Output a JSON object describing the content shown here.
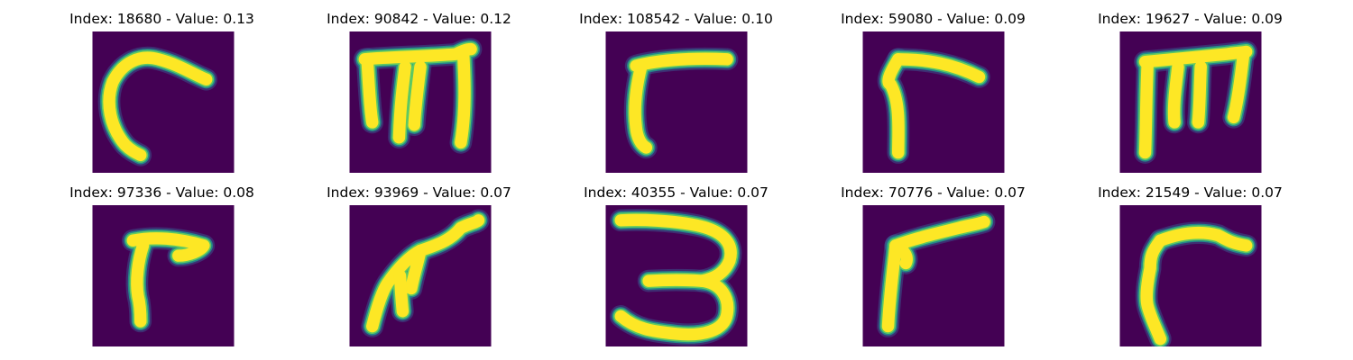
{
  "figure": {
    "background": "#ffffff",
    "image_background": "#440154",
    "stroke_color": "#fde725",
    "edge_colors": [
      "#21918c",
      "#5ec962",
      "#3b528b"
    ],
    "colormap": "viridis",
    "axes_visible": false
  },
  "panels": [
    {
      "title": "Index: 18680 - Value: 0.13",
      "index": "18680",
      "value": "0.13",
      "glyph": "hook"
    },
    {
      "title": "Index: 90842 - Value: 0.12",
      "index": "90842",
      "value": "0.12",
      "glyph": "m-shape"
    },
    {
      "title": "Index: 108542 - Value: 0.10",
      "index": "108542",
      "value": "0.10",
      "glyph": "seven-like"
    },
    {
      "title": "Index: 59080 - Value: 0.09",
      "index": "59080",
      "value": "0.09",
      "glyph": "seven-like"
    },
    {
      "title": "Index: 19627 - Value: 0.09",
      "index": "19627",
      "value": "0.09",
      "glyph": "m-shape"
    },
    {
      "title": "Index: 97336 - Value: 0.08",
      "index": "97336",
      "value": "0.08",
      "glyph": "seven-like"
    },
    {
      "title": "Index: 93969 - Value: 0.07",
      "index": "93969",
      "value": "0.07",
      "glyph": "wavy-stroke"
    },
    {
      "title": "Index: 40355 - Value: 0.07",
      "index": "40355",
      "value": "0.07",
      "glyph": "three"
    },
    {
      "title": "Index: 70776 - Value: 0.07",
      "index": "70776",
      "value": "0.07",
      "glyph": "seven-like"
    },
    {
      "title": "Index: 21549 - Value: 0.07",
      "index": "21549",
      "value": "0.07",
      "glyph": "seven-like"
    }
  ]
}
